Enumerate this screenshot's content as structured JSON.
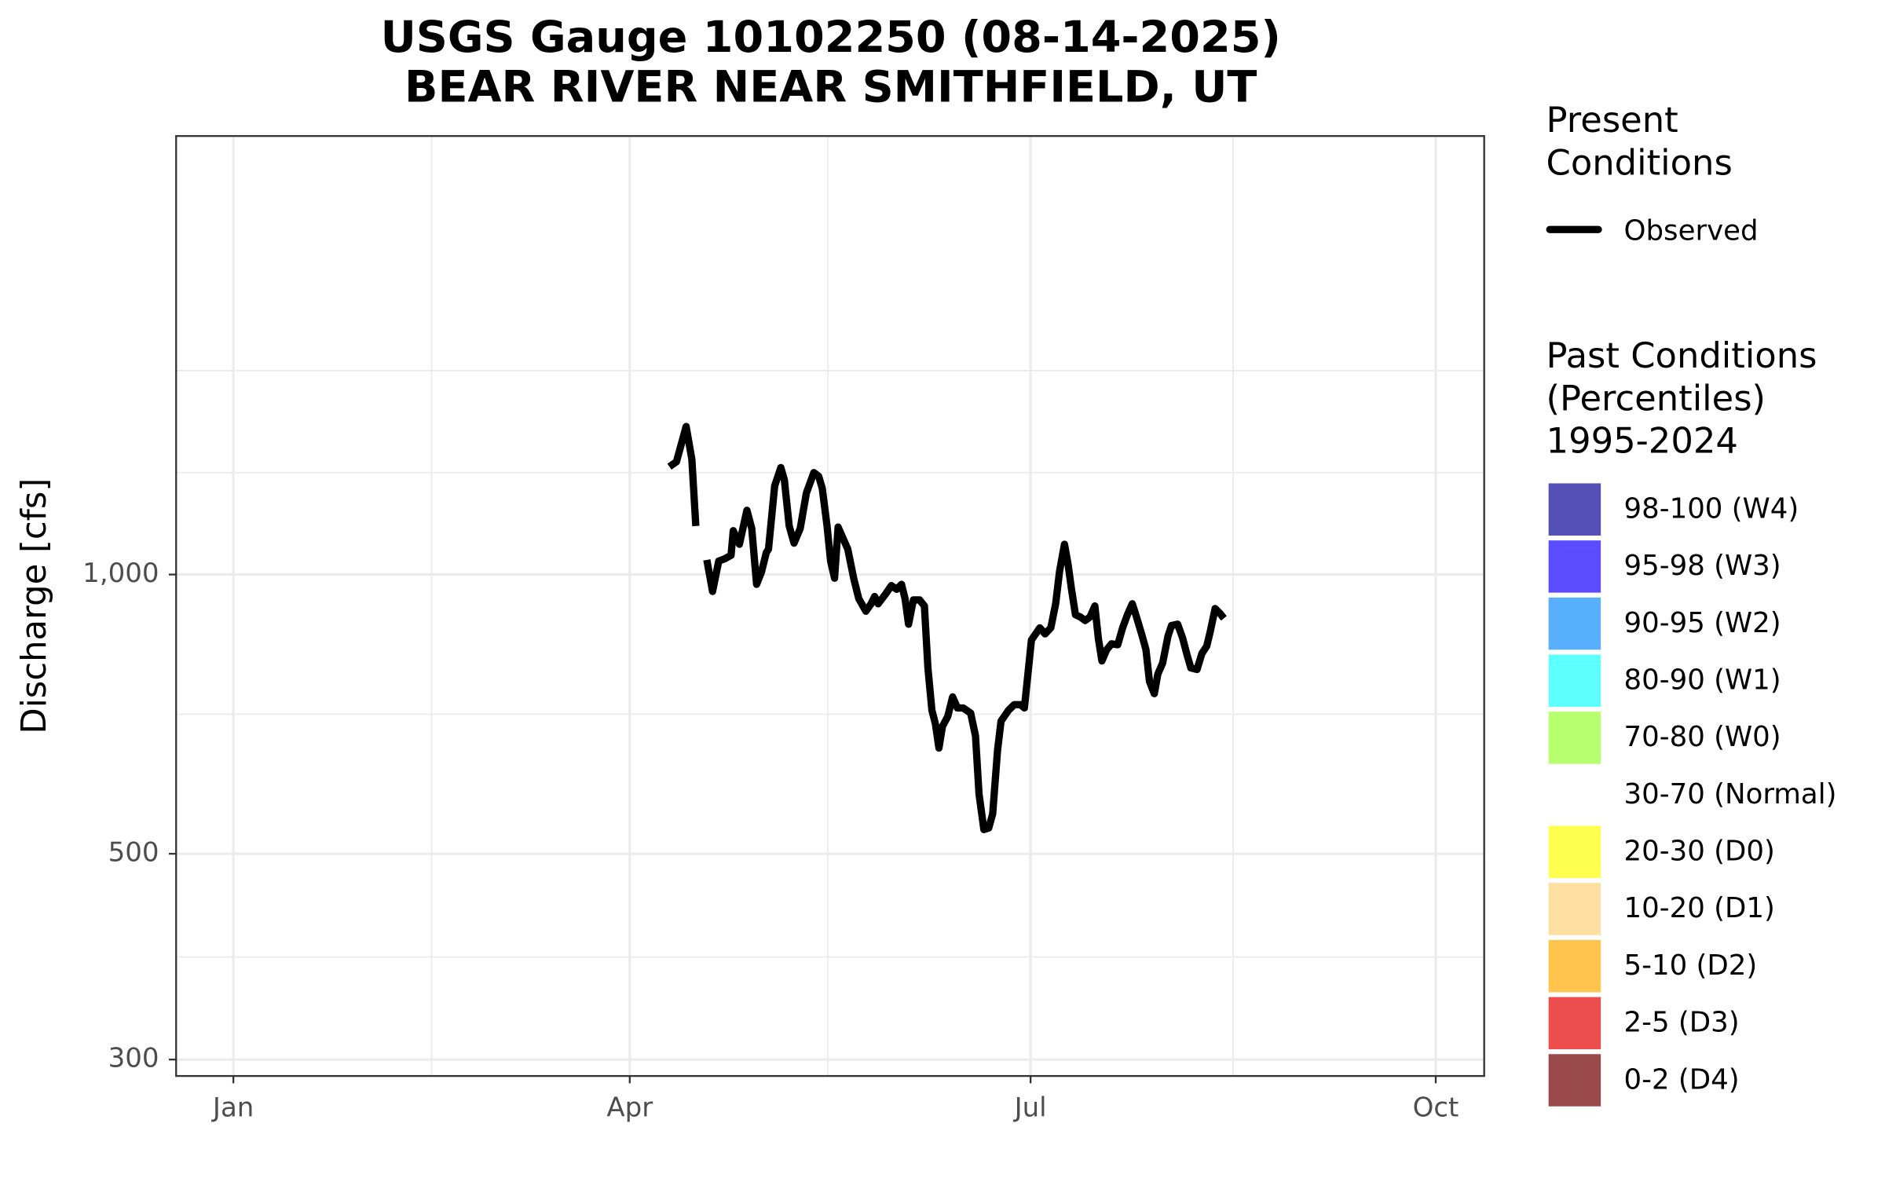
{
  "chart_data": {
    "type": "line",
    "title": [
      "USGS Gauge 10102250 (08-14-2025)",
      "BEAR RIVER NEAR SMITHFIELD, UT"
    ],
    "ylabel": "Discharge [cfs]",
    "log_scale": true,
    "grid": true,
    "xlim": [
      -13,
      284
    ],
    "xticks": [
      {
        "value": 0,
        "label": "Jan"
      },
      {
        "value": 90,
        "label": "Apr"
      },
      {
        "value": 181,
        "label": "Jul"
      },
      {
        "value": 273,
        "label": "Oct"
      }
    ],
    "minor_xticks": [
      45,
      135,
      227
    ],
    "ylim": [
      288,
      2970
    ],
    "yticks": [
      300,
      500,
      {
        "value": 1000,
        "label": "1,000"
      }
    ],
    "minor_yticks": [
      387,
      707,
      1288,
      1659
    ],
    "x": [
      99,
      100.6,
      102.8,
      104.1,
      105,
      106.3,
      107.5,
      108.8,
      110.2,
      111.6,
      113,
      113.5,
      114.9,
      116.6,
      117.7,
      118.8,
      119.9,
      121,
      121.5,
      122.9,
      124.3,
      125.1,
      126.2,
      127.3,
      128.7,
      130.1,
      131.8,
      132.9,
      133.7,
      134.8,
      135.6,
      136.5,
      137.3,
      139.5,
      140.9,
      142,
      143.6,
      144.8,
      145.6,
      146.4,
      148.1,
      149.4,
      150.6,
      151.7,
      152.5,
      153.3,
      154.4,
      155.8,
      156.9,
      157.7,
      158.6,
      159.4,
      160.2,
      161,
      162.2,
      163.3,
      164.4,
      165.7,
      167.4,
      168.5,
      169.3,
      170.4,
      171.5,
      172.4,
      173.5,
      174.3,
      176,
      177.3,
      178.7,
      179.6,
      180.4,
      181.2,
      182.3,
      183.1,
      184.3,
      185.6,
      186.7,
      187.6,
      188.7,
      189.5,
      190.3,
      191.2,
      192.3,
      193.4,
      194.5,
      195.6,
      196.4,
      197.2,
      198.3,
      199.4,
      200.8,
      201.9,
      203,
      204.1,
      204.9,
      206.3,
      207.2,
      208,
      209.1,
      209.9,
      211,
      212.2,
      213,
      214.4,
      215.5,
      216.6,
      217.4,
      218.8,
      219.9,
      221,
      221.8,
      222.9,
      224,
      224.9
    ],
    "series": [
      {
        "name": "Observed",
        "color": "#000000",
        "values": [
          1307,
          1323,
          1444,
          1331,
          1128,
          null,
          1037,
          959,
          1034,
          1040,
          1049,
          1115,
          1078,
          1173,
          1121,
          976,
          1006,
          1056,
          1065,
          1246,
          1304,
          1265,
          1128,
          1081,
          1121,
          1224,
          1288,
          1276,
          1239,
          1128,
          1034,
          991,
          1125,
          1065,
          988,
          942,
          913,
          930,
          947,
          930,
          953,
          973,
          964,
          976,
          942,
          884,
          939,
          939,
          925,
          793,
          714,
          690,
          650,
          686,
          703,
          738,
          718,
          718,
          709,
          670,
          580,
          531,
          533,
          552,
          646,
          695,
          714,
          724,
          724,
          718,
          781,
          850,
          865,
          876,
          863,
          876,
          930,
          1009,
          1078,
          1027,
          964,
          905,
          900,
          892,
          900,
          925,
          853,
          807,
          830,
          842,
          840,
          876,
          905,
          930,
          905,
          860,
          830,
          767,
          744,
          781,
          803,
          858,
          881,
          884,
          855,
          817,
          793,
          790,
          822,
          837,
          868,
          919,
          908,
          897
        ]
      }
    ],
    "legend_present_title": [
      "Present",
      "Conditions"
    ],
    "legend_past": {
      "title": [
        "Past Conditions",
        "(Percentiles)",
        "1995-2024"
      ],
      "items": [
        {
          "label": "98-100 (W4)",
          "color": "#5450b5"
        },
        {
          "label": "95-98 (W3)",
          "color": "#5b4cff"
        },
        {
          "label": "90-95 (W2)",
          "color": "#58b0fc"
        },
        {
          "label": "80-90 (W1)",
          "color": "#5effff"
        },
        {
          "label": "70-80 (W0)",
          "color": "#b7ff6e"
        },
        {
          "label": "30-70 (Normal)",
          "color": "#ffffff"
        },
        {
          "label": "20-30 (D0)",
          "color": "#ffff4f"
        },
        {
          "label": "10-20 (D1)",
          "color": "#fddfa1"
        },
        {
          "label": "5-10 (D2)",
          "color": "#fec44c"
        },
        {
          "label": "2-5 (D3)",
          "color": "#ec4d4d"
        },
        {
          "label": "0-2 (D4)",
          "color": "#9b4a4b"
        }
      ]
    }
  }
}
